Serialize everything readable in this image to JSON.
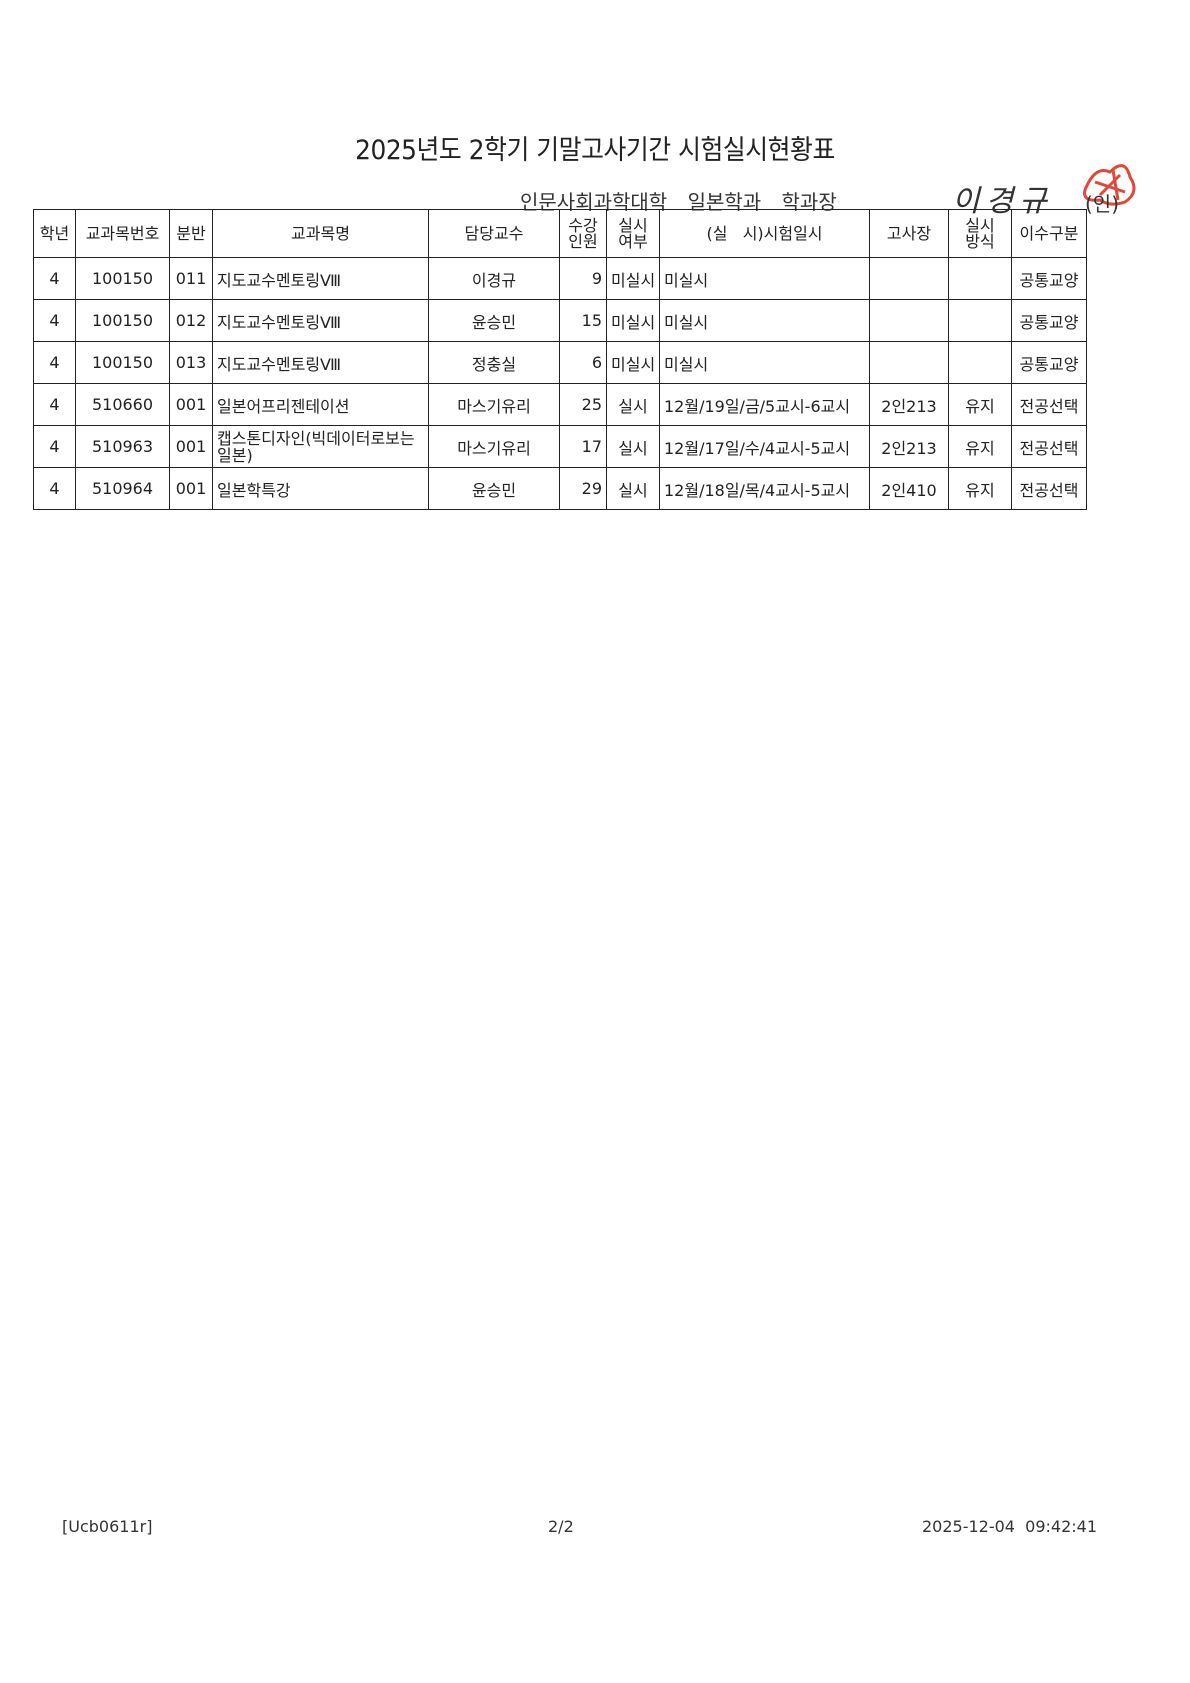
{
  "title": "2025년도 2학기 기말고사기간 시험실시현황표",
  "subheader": {
    "college": "인문사회과학대학",
    "department": "일본학과",
    "role": "학과장",
    "signature": "이경규",
    "seal_mark": "(인)"
  },
  "table": {
    "headers": [
      "학년",
      "교과목번호",
      "분반",
      "교과목명",
      "담당교수",
      "수강\n인원",
      "실시\n여부",
      "(실   시)시험일시",
      "고사장",
      "실시\n방식",
      "이수구분"
    ],
    "rows": [
      [
        "4",
        "100150",
        "011",
        "지도교수멘토링Ⅷ",
        "이경규",
        "9",
        "미실시",
        "미실시",
        "",
        "",
        "공통교양"
      ],
      [
        "4",
        "100150",
        "012",
        "지도교수멘토링Ⅷ",
        "윤승민",
        "15",
        "미실시",
        "미실시",
        "",
        "",
        "공통교양"
      ],
      [
        "4",
        "100150",
        "013",
        "지도교수멘토링Ⅷ",
        "정충실",
        "6",
        "미실시",
        "미실시",
        "",
        "",
        "공통교양"
      ],
      [
        "4",
        "510660",
        "001",
        "일본어프리젠테이션",
        "마스기유리",
        "25",
        "실시",
        "12월/19일/금/5교시-6교시",
        "2인213",
        "유지",
        "전공선택"
      ],
      [
        "4",
        "510963",
        "001",
        "캡스톤디자인(빅데이터로보는일본)",
        "마스기유리",
        "17",
        "실시",
        "12월/17일/수/4교시-5교시",
        "2인213",
        "유지",
        "전공선택"
      ],
      [
        "4",
        "510964",
        "001",
        "일본학특강",
        "윤승민",
        "29",
        "실시",
        "12월/18일/목/4교시-5교시",
        "2인410",
        "유지",
        "전공선택"
      ]
    ]
  },
  "footer": {
    "code": "[Ucb0611r]",
    "page": "2/2",
    "timestamp": "2025-12-04  09:42:41"
  },
  "colors": {
    "stamp": "#e0483a"
  }
}
